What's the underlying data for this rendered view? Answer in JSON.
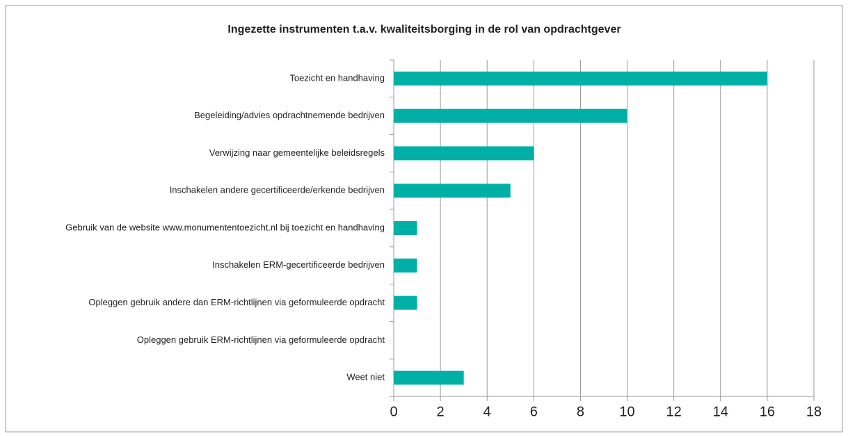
{
  "chart_data": {
    "type": "bar",
    "orientation": "horizontal",
    "title": "Ingezette instrumenten t.a.v. kwaliteitsborging in de rol van opdrachtgever",
    "categories": [
      "Toezicht en handhaving",
      "Begeleiding/advies opdrachtnemende bedrijven",
      "Verwijzing naar gemeentelijke beleidsregels",
      "Inschakelen andere gecertificeerde/erkende bedrijven",
      "Gebruik van de website www.monumententoezicht.nl bij toezicht en handhaving",
      "Inschakelen ERM-gecertificeerde bedrijven",
      "Opleggen gebruik andere dan ERM-richtlijnen via geformuleerde opdracht",
      "Opleggen gebruik ERM-richtlijnen via geformuleerde opdracht",
      "Weet niet"
    ],
    "values": [
      16,
      10,
      6,
      5,
      1,
      1,
      1,
      0,
      3
    ],
    "color": "#00b0a6",
    "xlim": [
      0,
      18
    ],
    "xticks": [
      0,
      2,
      4,
      6,
      8,
      10,
      12,
      14,
      16,
      18
    ],
    "grid": true
  }
}
